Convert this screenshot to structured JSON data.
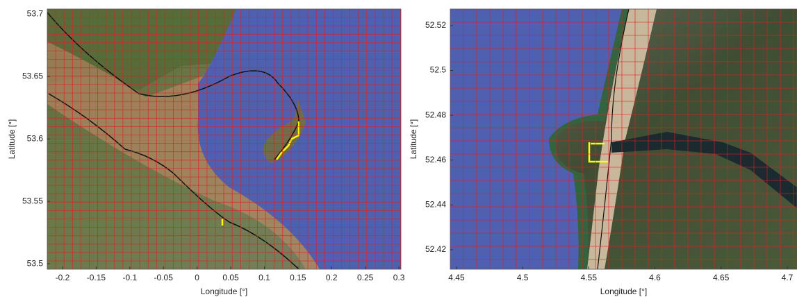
{
  "chart_data": [
    {
      "type": "map",
      "xlabel": "Longitude [°]",
      "ylabel": "Latitude [°]",
      "xlim": [
        -0.2227,
        0.303
      ],
      "ylim": [
        53.4956,
        53.704
      ],
      "xticks": [
        -0.2,
        -0.15,
        -0.1,
        -0.05,
        0,
        0.05,
        0.1,
        0.15,
        0.2,
        0.25,
        0.3
      ],
      "yticks": [
        53.5,
        53.55,
        53.6,
        53.65,
        53.7
      ]
    },
    {
      "type": "map",
      "xlabel": "Longitude [°]",
      "ylabel": "Latitude [°]",
      "xlim": [
        4.4453,
        4.7074
      ],
      "ylim": [
        52.4113,
        52.5274
      ],
      "xticks": [
        4.45,
        4.5,
        4.55,
        4.6,
        4.65,
        4.7
      ],
      "yticks": [
        52.42,
        52.44,
        52.46,
        52.48,
        52.5,
        52.52
      ]
    }
  ]
}
